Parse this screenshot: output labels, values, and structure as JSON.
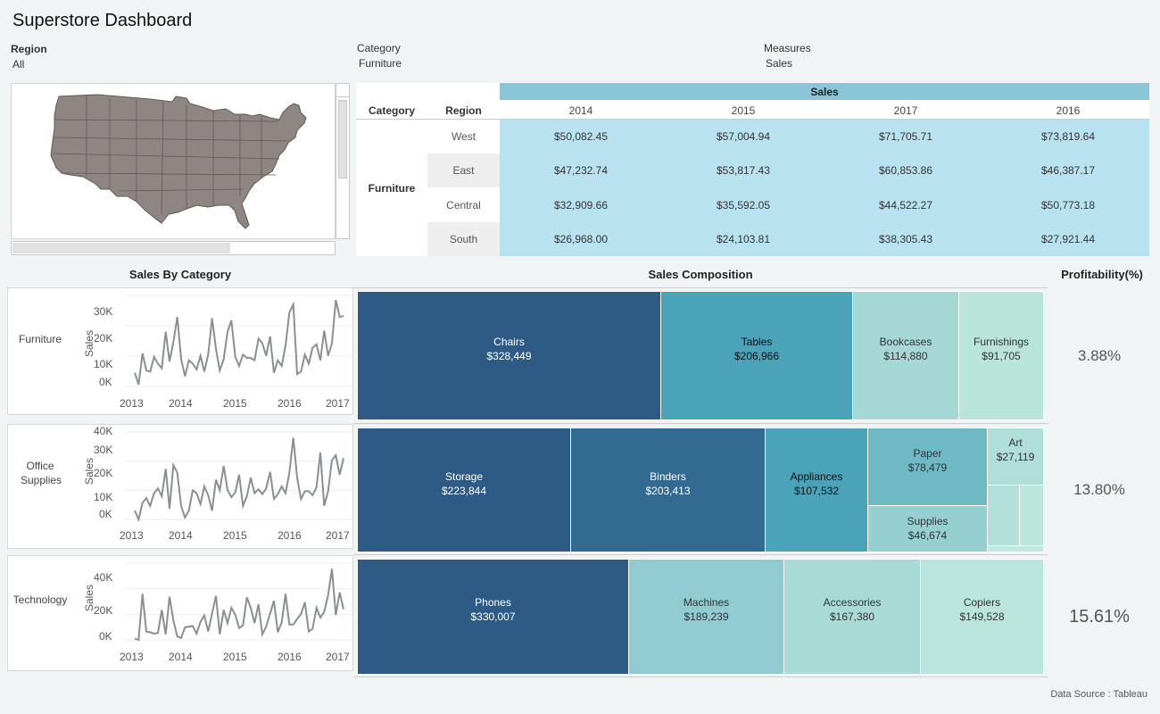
{
  "title": "Superstore Dashboard",
  "filters": {
    "region_label": "Region",
    "region_value": "All",
    "category_label": "Category",
    "category_value": "Furniture",
    "measures_label": "Measures",
    "measures_value": "Sales"
  },
  "crosstab": {
    "header_sales": "Sales",
    "col_category": "Category",
    "col_region": "Region",
    "years": [
      "2014",
      "2015",
      "2017",
      "2016"
    ],
    "category": "Furniture",
    "rows": [
      {
        "region": "West",
        "values": [
          "$50,082.45",
          "$57,004.94",
          "$71,705.71",
          "$73,819.64"
        ]
      },
      {
        "region": "East",
        "values": [
          "$47,232.74",
          "$53,817.43",
          "$60,853.86",
          "$46,387.17"
        ]
      },
      {
        "region": "Central",
        "values": [
          "$32,909.66",
          "$35,592.05",
          "$44,522.27",
          "$50,773.18"
        ]
      },
      {
        "region": "South",
        "values": [
          "$26,968.00",
          "$24,103.81",
          "$38,305.43",
          "$27,921.44"
        ]
      }
    ]
  },
  "sections": {
    "sales_by_category": "Sales By Category",
    "sales_composition": "Sales Composition",
    "profitability": "Profitability(%)"
  },
  "sparklines": [
    {
      "category": "Furniture",
      "ylabel": "Sales",
      "yticks": [
        "30K",
        "20K",
        "10K",
        "0K"
      ],
      "xticks": [
        "2013",
        "2014",
        "2015",
        "2016",
        "2017"
      ]
    },
    {
      "category": "Office Supplies",
      "ylabel": "Sales",
      "yticks": [
        "40K",
        "30K",
        "20K",
        "10K",
        "0K"
      ],
      "xticks": [
        "2013",
        "2014",
        "2015",
        "2016",
        "2017"
      ]
    },
    {
      "category": "Technology",
      "ylabel": "Sales",
      "yticks": [
        "40K",
        "20K",
        "0K"
      ],
      "xticks": [
        "2013",
        "2014",
        "2015",
        "2016",
        "2017"
      ]
    }
  ],
  "chart_data": [
    {
      "type": "line",
      "title": "",
      "category": "Furniture",
      "ylim": [
        0,
        40000
      ],
      "values": [
        6000,
        800,
        14500,
        7000,
        6500,
        13000,
        10000,
        8000,
        24000,
        11000,
        19500,
        30500,
        12000,
        4500,
        11500,
        10000,
        7500,
        13500,
        6500,
        14000,
        30000,
        16500,
        7000,
        12000,
        24000,
        29000,
        13000,
        9000,
        14000,
        12500,
        12500,
        11500,
        21000,
        19000,
        13500,
        22000,
        6000,
        11500,
        9000,
        18000,
        32500,
        36000,
        5500,
        6500,
        14000,
        10000,
        17000,
        18500,
        11500,
        24500,
        13500,
        19000,
        38000,
        30500,
        31000
      ]
    },
    {
      "type": "line",
      "title": "",
      "category": "Office Supplies",
      "ylim": [
        0,
        45000
      ],
      "values": [
        4500,
        0,
        8500,
        11000,
        7000,
        13500,
        16000,
        12000,
        26000,
        5500,
        28000,
        24000,
        7000,
        1000,
        4500,
        15000,
        13500,
        8000,
        17000,
        12500,
        4500,
        20500,
        15000,
        27500,
        15000,
        11500,
        14000,
        23000,
        7000,
        12000,
        21500,
        13500,
        15500,
        13000,
        16000,
        24500,
        10500,
        13000,
        17000,
        13500,
        24000,
        42000,
        21500,
        10500,
        14500,
        14500,
        12500,
        16500,
        34500,
        7000,
        14500,
        30500,
        33000,
        23000,
        31500
      ]
    },
    {
      "type": "line",
      "title": "",
      "category": "Technology",
      "ylim": [
        0,
        55000
      ],
      "values": [
        1000,
        0,
        33000,
        6000,
        5500,
        4500,
        5000,
        21500,
        4000,
        31000,
        14000,
        2500,
        1500,
        9000,
        9500,
        10000,
        4500,
        13000,
        17500,
        6000,
        19000,
        31500,
        4000,
        21500,
        12000,
        23000,
        18000,
        8500,
        10500,
        30500,
        23000,
        12000,
        25500,
        4000,
        9500,
        19000,
        28000,
        5500,
        12500,
        33000,
        11000,
        11000,
        15000,
        18500,
        27000,
        6000,
        8000,
        23000,
        16000,
        20000,
        32000,
        51000,
        18000,
        34000,
        22000
      ]
    }
  ],
  "treemap": [
    {
      "category": "Furniture",
      "profit": "3.88%",
      "items": [
        {
          "name": "Chairs",
          "value": "$328,449",
          "color": "#2e5b86"
        },
        {
          "name": "Tables",
          "value": "$206,966",
          "color": "#4aa3b9"
        },
        {
          "name": "Bookcases",
          "value": "$114,880",
          "color": "#a5d7d5"
        },
        {
          "name": "Furnishings",
          "value": "$91,705",
          "color": "#b8e4da"
        }
      ]
    },
    {
      "category": "Office Supplies",
      "profit": "13.80%",
      "items": [
        {
          "name": "Storage",
          "value": "$223,844",
          "color": "#2e5b86"
        },
        {
          "name": "Binders",
          "value": "$203,413",
          "color": "#336a91"
        },
        {
          "name": "Appliances",
          "value": "$107,532",
          "color": "#4aa3b9"
        },
        {
          "name": "Paper",
          "value": "$78,479",
          "color": "#6fb9c5"
        },
        {
          "name": "Supplies",
          "value": "$46,674",
          "color": "#96cfd1"
        },
        {
          "name": "Art",
          "value": "$27,119",
          "color": "#afdfd8"
        }
      ]
    },
    {
      "category": "Technology",
      "profit": "15.61%",
      "items": [
        {
          "name": "Phones",
          "value": "$330,007",
          "color": "#2e5b86"
        },
        {
          "name": "Machines",
          "value": "$189,239",
          "color": "#8fcbd0"
        },
        {
          "name": "Accessories",
          "value": "$167,380",
          "color": "#a8dbd5"
        },
        {
          "name": "Copiers",
          "value": "$149,528",
          "color": "#b9e5dc"
        }
      ]
    }
  ],
  "footer": "Data Source : Tableau",
  "colors": {
    "header_band": "#8ac6d8",
    "cell_bg": "#b9e2f0",
    "map_fill": "#8f8684",
    "line": "#8a8f94"
  }
}
